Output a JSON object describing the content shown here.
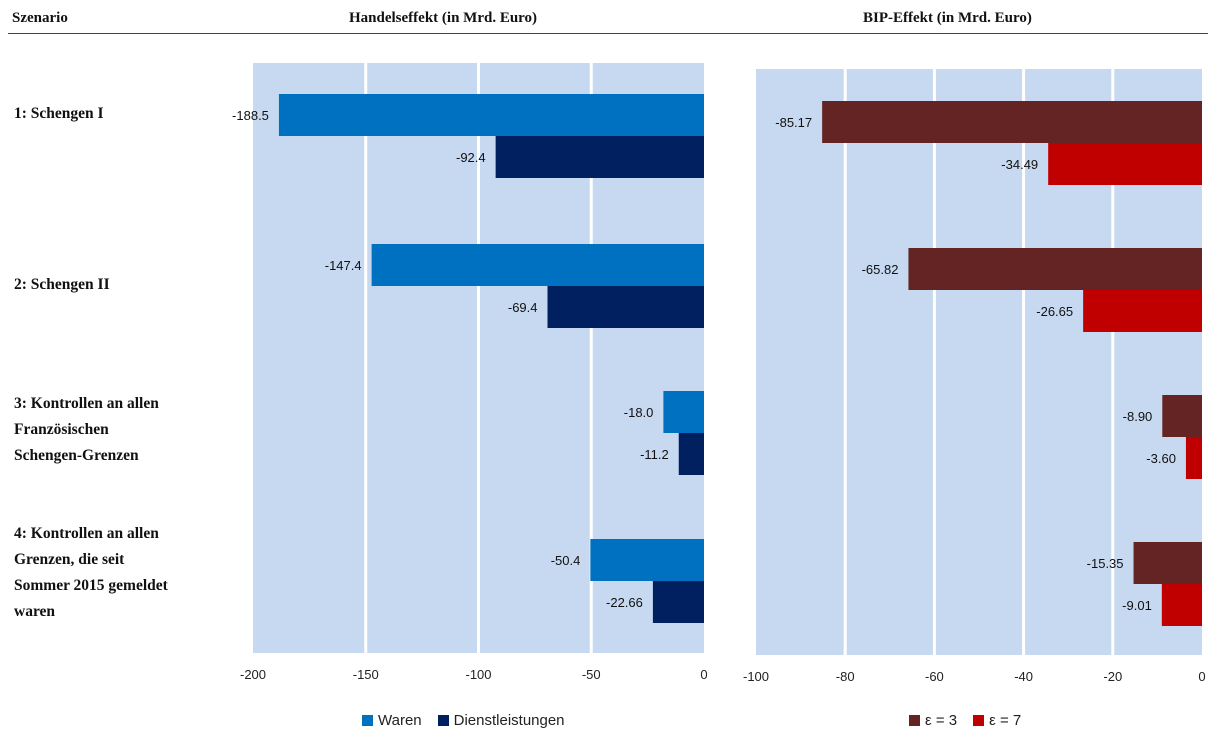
{
  "header": {
    "scenario": "Szenario",
    "trade": "Handelseffekt (in Mrd. Euro)",
    "gdp": "BIP-Effekt (in Mrd. Euro)"
  },
  "scenarios": [
    {
      "lines": [
        "1: Schengen I"
      ]
    },
    {
      "lines": [
        "2: Schengen II"
      ]
    },
    {
      "lines": [
        "3: Kontrollen an allen",
        "Französischen",
        "Schengen-Grenzen"
      ]
    },
    {
      "lines": [
        "4: Kontrollen an allen",
        "Grenzen, die seit",
        "Sommer 2015 gemeldet",
        "waren"
      ]
    }
  ],
  "chart_data": [
    {
      "type": "bar",
      "orientation": "horizontal",
      "title": "Handelseffekt (in Mrd. Euro)",
      "categories": [
        "1: Schengen I",
        "2: Schengen II",
        "3: Kontrollen an allen Französischen Schengen-Grenzen",
        "4: Kontrollen an allen Grenzen, die seit Sommer 2015 gemeldet waren"
      ],
      "series": [
        {
          "name": "Waren",
          "values": [
            -188.5,
            -147.4,
            -18.0,
            -50.4
          ],
          "labels": [
            "-188.5",
            "-147.4",
            "-18.0",
            "-50.4"
          ],
          "color": "#0070c0"
        },
        {
          "name": "Dienstleistungen",
          "values": [
            -92.4,
            -69.4,
            -11.2,
            -22.66
          ],
          "labels": [
            "-92.4",
            "-69.4",
            "-11.2",
            "-22.66"
          ],
          "color": "#002060"
        }
      ],
      "xlim": [
        -200,
        0
      ],
      "ticks": [
        -200,
        -150,
        -100,
        -50,
        0
      ],
      "tick_labels": [
        "-200",
        "-150",
        "-100",
        "-50",
        "0"
      ],
      "plot_background": "#c6d9f1",
      "grid": true,
      "legend_position": "bottom"
    },
    {
      "type": "bar",
      "orientation": "horizontal",
      "title": "BIP-Effekt (in Mrd. Euro)",
      "categories": [
        "1: Schengen I",
        "2: Schengen II",
        "3: Kontrollen an allen Französischen Schengen-Grenzen",
        "4: Kontrollen an allen Grenzen, die seit Sommer 2015 gemeldet waren"
      ],
      "series": [
        {
          "name": "ε = 3",
          "values": [
            -85.17,
            -65.82,
            -8.9,
            -15.35
          ],
          "labels": [
            "-85.17",
            "-65.82",
            "-8.90",
            "-15.35"
          ],
          "color": "#632423"
        },
        {
          "name": "ε = 7",
          "values": [
            -34.49,
            -26.65,
            -3.6,
            -9.01
          ],
          "labels": [
            "-34.49",
            "-26.65",
            "-3.60",
            "-9.01"
          ],
          "color": "#c00000"
        }
      ],
      "xlim": [
        -100,
        0
      ],
      "ticks": [
        -100,
        -80,
        -60,
        -40,
        -20,
        0
      ],
      "tick_labels": [
        "-100",
        "-80",
        "-60",
        "-40",
        "-20",
        "0"
      ],
      "plot_background": "#c6d9f1",
      "grid": true,
      "legend_position": "bottom"
    }
  ]
}
